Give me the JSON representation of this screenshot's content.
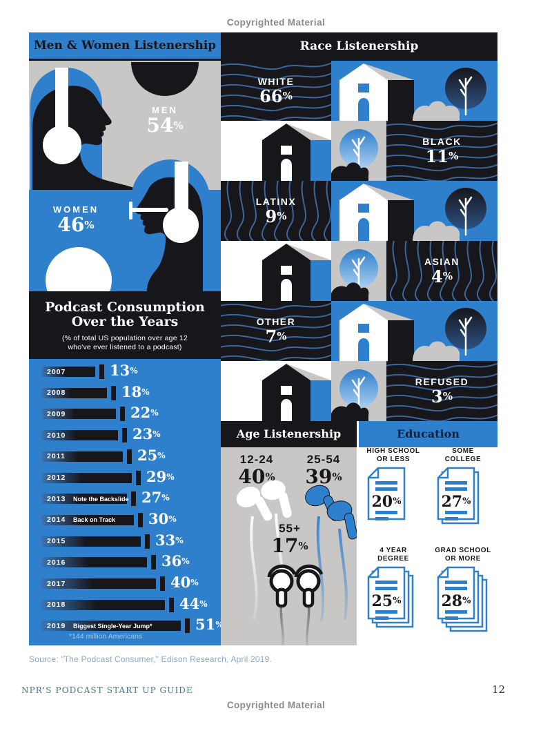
{
  "page": {
    "copyright_top": "Copyrighted Material",
    "copyright_bottom": "Copyrighted Material",
    "source": "Source: \"The Podcast Consumer,\" Edison Research, April 2019.",
    "footer": {
      "book_title": "NPR'S PODCAST START UP GUIDE",
      "page_number": "12"
    }
  },
  "symbols": {
    "percent": "%"
  },
  "colors": {
    "blue": "#2f80cc",
    "black": "#17161b",
    "gray": "#c8c7c5",
    "wave_blue": "#416fa9",
    "footnote_blue": "#a5c3e3",
    "source_text": "#8fa7bf",
    "footer_teal": "#45798f"
  },
  "gender": {
    "title": "Men & Women Listenership",
    "men": {
      "label": "MEN",
      "value": "54"
    },
    "women": {
      "label": "WOMEN",
      "value": "46"
    }
  },
  "race": {
    "title": "Race Listenership",
    "rows": [
      {
        "label": "WHITE",
        "value": "66"
      },
      {
        "label": "BLACK",
        "value": "11"
      },
      {
        "label": "LATINX",
        "value": "9"
      },
      {
        "label": "ASIAN",
        "value": "4"
      },
      {
        "label": "OTHER",
        "value": "7"
      },
      {
        "label": "REFUSED",
        "value": "3"
      }
    ]
  },
  "consumption": {
    "title_line1": "Podcast Consumption",
    "title_line2": "Over the Years",
    "subtitle_line1": "(% of total US population over age 12",
    "subtitle_line2": "who've ever listened to a podcast)",
    "footnote": "*144 million Americans",
    "bars": [
      {
        "year": "2007",
        "value": 13
      },
      {
        "year": "2008",
        "value": 18
      },
      {
        "year": "2009",
        "value": 22
      },
      {
        "year": "2010",
        "value": 23
      },
      {
        "year": "2011",
        "value": 25
      },
      {
        "year": "2012",
        "value": 29
      },
      {
        "year": "2013",
        "value": 27,
        "note": "Note the Backslide"
      },
      {
        "year": "2014",
        "value": 30,
        "note": "Back on Track"
      },
      {
        "year": "2015",
        "value": 33
      },
      {
        "year": "2016",
        "value": 36
      },
      {
        "year": "2017",
        "value": 40
      },
      {
        "year": "2018",
        "value": 44
      },
      {
        "year": "2019",
        "value": 51,
        "note": "Biggest Single-Year Jump*"
      }
    ]
  },
  "age": {
    "title": "Age Listenership",
    "groups": [
      {
        "label": "12-24",
        "value": "40"
      },
      {
        "label": "25-54",
        "value": "39"
      },
      {
        "label": "55+",
        "value": "17"
      }
    ]
  },
  "education": {
    "title": "Education",
    "items": [
      {
        "label_line1": "HIGH SCHOOL",
        "label_line2": "OR LESS",
        "value": "20",
        "pages": 1
      },
      {
        "label_line1": "SOME",
        "label_line2": "COLLEGE",
        "value": "27",
        "pages": 2
      },
      {
        "label_line1": "4 YEAR",
        "label_line2": "DEGREE",
        "value": "25",
        "pages": 3
      },
      {
        "label_line1": "GRAD SCHOOL",
        "label_line2": "OR MORE",
        "value": "28",
        "pages": 4
      }
    ]
  },
  "chart_data": [
    {
      "type": "pictorial",
      "title": "Men & Women Listenership",
      "categories": [
        "Men",
        "Women"
      ],
      "values": [
        54,
        46
      ],
      "unit": "%"
    },
    {
      "type": "pictorial",
      "title": "Race Listenership",
      "categories": [
        "White",
        "Black",
        "Latinx",
        "Asian",
        "Other",
        "Refused"
      ],
      "values": [
        66,
        11,
        9,
        4,
        7,
        3
      ],
      "unit": "%"
    },
    {
      "type": "bar",
      "orientation": "horizontal",
      "title": "Podcast Consumption Over the Years",
      "subtitle": "(% of total US population over age 12 who've ever listened to a podcast)",
      "categories": [
        "2007",
        "2008",
        "2009",
        "2010",
        "2011",
        "2012",
        "2013",
        "2014",
        "2015",
        "2016",
        "2017",
        "2018",
        "2019"
      ],
      "values": [
        13,
        18,
        22,
        23,
        25,
        29,
        27,
        30,
        33,
        36,
        40,
        44,
        51
      ],
      "annotations": {
        "2013": "Note the Backslide",
        "2014": "Back on Track",
        "2019": "Biggest Single-Year Jump*"
      },
      "footnote": "*144 million Americans",
      "unit": "%",
      "xlim": [
        0,
        55
      ],
      "grid": false,
      "legend": false
    },
    {
      "type": "pictorial",
      "title": "Age Listenership",
      "categories": [
        "12-24",
        "25-54",
        "55+"
      ],
      "values": [
        40,
        39,
        17
      ],
      "unit": "%"
    },
    {
      "type": "pictorial",
      "title": "Education",
      "categories": [
        "High school or less",
        "Some college",
        "4 year degree",
        "Grad school or more"
      ],
      "values": [
        20,
        27,
        25,
        28
      ],
      "unit": "%"
    }
  ]
}
